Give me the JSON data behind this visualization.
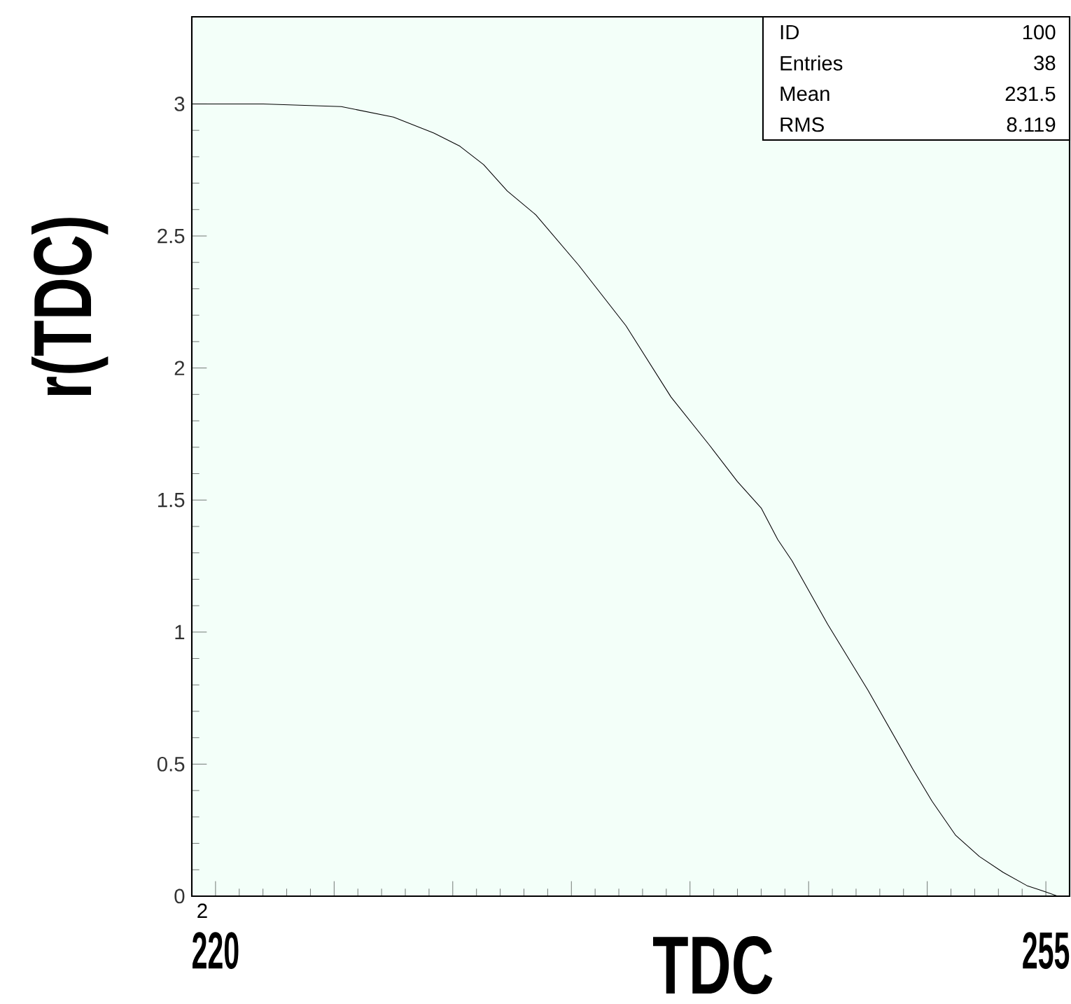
{
  "chart_data": {
    "type": "line",
    "xlabel": "TDC",
    "ylabel": "r(TDC)",
    "x": [
      219,
      222,
      225.3,
      227.5,
      229.2,
      230.3,
      231.3,
      232.3,
      233.5,
      235.3,
      237.3,
      239.2,
      240.8,
      242.0,
      243.0,
      243.7,
      244.3,
      245.8,
      247.5,
      249.4,
      250.2,
      251.2,
      252.2,
      253.2,
      254.2,
      255.0,
      255.5
    ],
    "series": [
      {
        "color": "#000000",
        "values": [
          3.0,
          3.0,
          2.99,
          2.95,
          2.89,
          2.84,
          2.77,
          2.67,
          2.58,
          2.39,
          2.16,
          1.89,
          1.71,
          1.57,
          1.47,
          1.35,
          1.27,
          1.03,
          0.78,
          0.48,
          0.36,
          0.23,
          0.15,
          0.09,
          0.04,
          0.016,
          0.0
        ]
      }
    ],
    "xlim": [
      219,
      256
    ],
    "ylim": [
      0,
      3.33
    ],
    "xticks": [
      220,
      {
        "value": 225,
        "label": null
      },
      {
        "value": 230,
        "label": null
      },
      {
        "value": 235,
        "label": null
      },
      {
        "value": 240,
        "label": null
      },
      {
        "value": 245,
        "label": null
      },
      {
        "value": 250,
        "label": null
      },
      255
    ],
    "yticks": [
      0,
      0.5,
      1,
      1.5,
      2,
      2.5,
      3
    ],
    "annotations": [
      "ID",
      "100",
      "Entries",
      "38",
      "Mean",
      "231.5",
      "RMS",
      "8.119",
      "2"
    ],
    "marker": "none",
    "line_style": "solid",
    "grid": false
  }
}
